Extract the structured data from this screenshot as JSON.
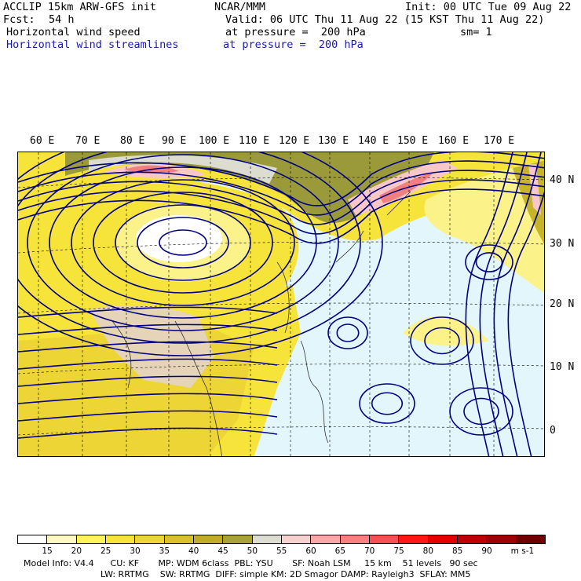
{
  "header": {
    "model": "ACCLIP 15km ARW-GFS init",
    "org": "NCAR/MMM",
    "init": "Init: 00 UTC Tue 09 Aug 22",
    "fcst_label": "Fcst:",
    "fcst_value": "54 h",
    "valid": "Valid: 06 UTC Thu 11 Aug 22 (15 KST Thu 11 Aug 22)",
    "field1_name": "Horizontal wind speed",
    "field1_level": "at pressure =  200 hPa",
    "field1_sm": "sm= 1",
    "field2_name": "Horizontal wind streamlines",
    "field2_level": "at pressure =  200 hPa"
  },
  "map": {
    "lon_labels": [
      "60 E",
      "70 E",
      "80 E",
      "90 E",
      "100 E",
      "110 E",
      "120 E",
      "130 E",
      "140 E",
      "150 E",
      "160 E",
      "170 E"
    ],
    "lat_labels": [
      "40 N",
      "30 N",
      "20 N",
      "10 N",
      "0"
    ],
    "colors": {
      "yellow": "#f7e43a",
      "dark_yellow": "#c6b42a",
      "light_yellow": "#fbf28a",
      "pale_yellow": "#fffbc0",
      "olive": "#9a9a3a",
      "pink": "#f8c8c8",
      "red": "#f08080",
      "ocean": "#e3f6fb",
      "land": "#e6d4b8",
      "streamline": "#000080"
    }
  },
  "colorbar": {
    "bins": [
      {
        "color": "#ffffff",
        "label": ""
      },
      {
        "color": "#fffbc0",
        "label": "15"
      },
      {
        "color": "#fff35e",
        "label": "20"
      },
      {
        "color": "#f7e43a",
        "label": "25"
      },
      {
        "color": "#ecd534",
        "label": "30"
      },
      {
        "color": "#d8c12c",
        "label": "35"
      },
      {
        "color": "#c1ab2a",
        "label": "40"
      },
      {
        "color": "#a8a038",
        "label": "45"
      },
      {
        "color": "#dcdcd0",
        "label": "50"
      },
      {
        "color": "#f8d0d0",
        "label": "55"
      },
      {
        "color": "#f8a8a8",
        "label": "60"
      },
      {
        "color": "#f88080",
        "label": "65"
      },
      {
        "color": "#f85050",
        "label": "70"
      },
      {
        "color": "#f81818",
        "label": "75"
      },
      {
        "color": "#e00000",
        "label": "80"
      },
      {
        "color": "#c00000",
        "label": "85"
      },
      {
        "color": "#a00000",
        "label": "90"
      },
      {
        "color": "#700000",
        "label": "m s-1"
      }
    ]
  },
  "footer": {
    "line1": "Model Info: V4.4      CU: KF       MP: WDM 6class  PBL: YSU       SF: Noah LSM     15 km    51 levels   90 sec",
    "line2": "LW: RRTMG    SW: RRTMG  DIFF: simple KM: 2D Smagor DAMP: Rayleigh3  SFLAY: MM5"
  }
}
